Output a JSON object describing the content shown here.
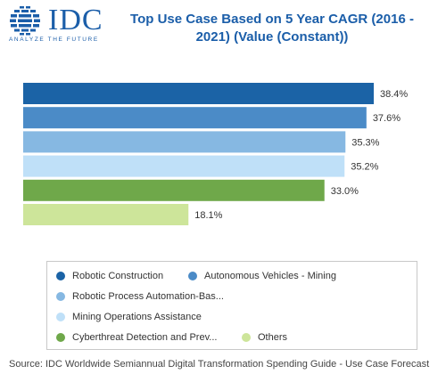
{
  "logo": {
    "word": "IDC",
    "tagline": "ANALYZE THE FUTURE"
  },
  "chart_data": {
    "type": "bar",
    "orientation": "horizontal",
    "title": "Top Use Case Based on 5 Year CAGR (2016 - 2021) (Value (Constant))",
    "xlim": [
      0,
      40
    ],
    "grid": false,
    "legend_position": "bottom",
    "series": [
      {
        "name": "Robotic Construction",
        "value": 38.4,
        "label": "38.4%",
        "color": "#1b63a6"
      },
      {
        "name": "Autonomous Vehicles - Mining",
        "value": 37.6,
        "label": "37.6%",
        "color": "#4b8bc7"
      },
      {
        "name": "Robotic Process Automation-Bas...",
        "value": 35.3,
        "label": "35.3%",
        "color": "#86b8e2"
      },
      {
        "name": "Mining Operations Assistance",
        "value": 35.2,
        "label": "35.2%",
        "color": "#bfe0f8"
      },
      {
        "name": "Cyberthreat Detection and Prev...",
        "value": 33.0,
        "label": "33.0%",
        "color": "#6fa84a"
      },
      {
        "name": "Others",
        "value": 18.1,
        "label": "18.1%",
        "color": "#cde59a"
      }
    ]
  },
  "source": "Source: IDC Worldwide Semiannual Digital Transformation Spending Guide - Use Case Forecast"
}
